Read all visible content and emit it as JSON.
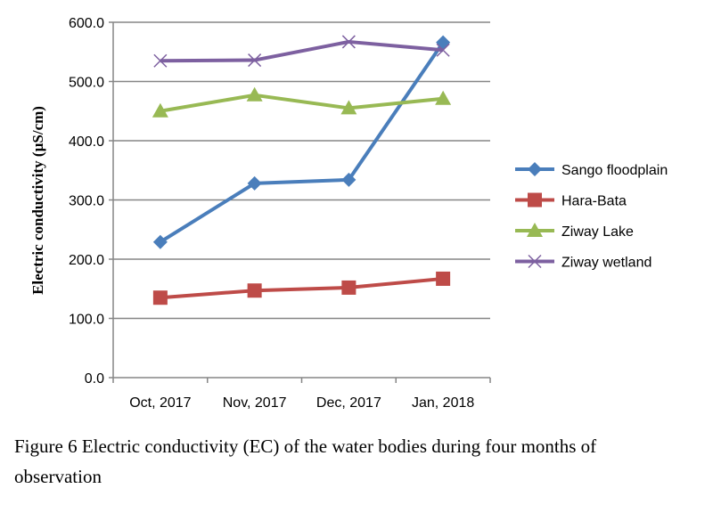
{
  "chart_data": {
    "type": "line",
    "title": "",
    "xlabel": "",
    "ylabel": "Electric conductivity (µS/cm)",
    "categories": [
      "Oct, 2017",
      "Nov, 2017",
      "Dec, 2017",
      "Jan, 2018"
    ],
    "ylim": [
      0,
      600
    ],
    "yticks": [
      "0.0",
      "100.0",
      "200.0",
      "300.0",
      "400.0",
      "500.0",
      "600.0"
    ],
    "ytick_values": [
      0,
      100,
      200,
      300,
      400,
      500,
      600
    ],
    "grid": true,
    "legend": "right",
    "series": [
      {
        "name": "Sango floodplain",
        "values": [
          229,
          328,
          334,
          566
        ],
        "color": "#4a7ebb",
        "marker": "diamond"
      },
      {
        "name": "Hara-Bata",
        "values": [
          135,
          147,
          152,
          167
        ],
        "color": "#be4b48",
        "marker": "square"
      },
      {
        "name": "Ziway Lake",
        "values": [
          450,
          477,
          455,
          471
        ],
        "color": "#98b954",
        "marker": "triangle"
      },
      {
        "name": "Ziway wetland",
        "values": [
          535,
          536,
          567,
          553
        ],
        "color": "#7d60a0",
        "marker": "x"
      }
    ]
  },
  "caption": {
    "line1": "Figure 6 Electric conductivity (EC) of the water bodies during four months of",
    "line2": "observation"
  }
}
